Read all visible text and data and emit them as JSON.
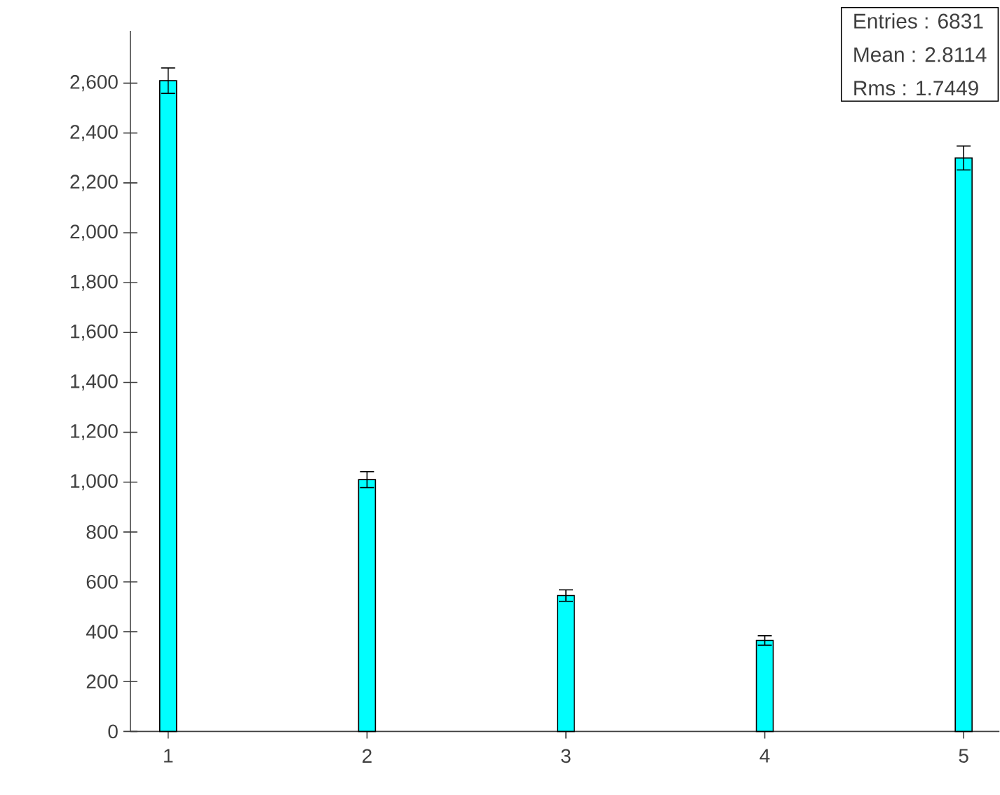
{
  "chart_data": {
    "type": "bar",
    "x": [
      1,
      2,
      3,
      4,
      5
    ],
    "values": [
      2610,
      1010,
      545,
      365,
      2300
    ],
    "errors": [
      51,
      32,
      23,
      19,
      48
    ],
    "color": "#00ffff",
    "xlim": [
      0.81,
      5.18
    ],
    "ylim": [
      0,
      2810
    ],
    "xticks": [
      1,
      2,
      3,
      4,
      5
    ],
    "yticks": [
      {
        "value": 0,
        "label": "0"
      },
      {
        "value": 200,
        "label": "200"
      },
      {
        "value": 400,
        "label": "400"
      },
      {
        "value": 600,
        "label": "600"
      },
      {
        "value": 800,
        "label": "800"
      },
      {
        "value": 1000,
        "label": "1,000"
      },
      {
        "value": 1200,
        "label": "1,200"
      },
      {
        "value": 1400,
        "label": "1,400"
      },
      {
        "value": 1600,
        "label": "1,600"
      },
      {
        "value": 1800,
        "label": "1,800"
      },
      {
        "value": 2000,
        "label": "2,000"
      },
      {
        "value": 2200,
        "label": "2,200"
      },
      {
        "value": 2400,
        "label": "2,400"
      },
      {
        "value": 2600,
        "label": "2,600"
      }
    ],
    "annotations": [
      "Entries : 6831",
      "Mean : 2.8114",
      "Rms : 1.7449"
    ]
  }
}
